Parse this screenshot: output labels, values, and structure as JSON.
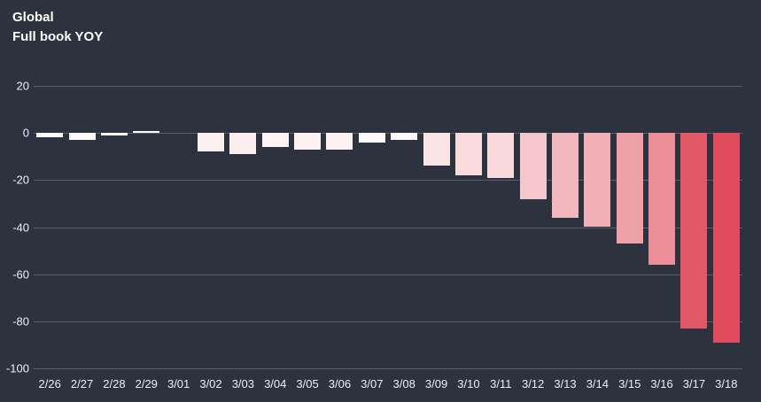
{
  "header": {
    "title": "Global",
    "subtitle": "Full book YOY"
  },
  "colors": {
    "background": "#2d333e",
    "gridline": "#5a606b",
    "axis_label_text": "#edeff2",
    "title_text": "#ffffff"
  },
  "chart_data": {
    "type": "bar",
    "title": "Global",
    "subtitle": "Full book YOY",
    "categories": [
      "2/26",
      "2/27",
      "2/28",
      "2/29",
      "3/01",
      "3/02",
      "3/03",
      "3/04",
      "3/05",
      "3/06",
      "3/07",
      "3/08",
      "3/09",
      "3/10",
      "3/11",
      "3/12",
      "3/13",
      "3/14",
      "3/15",
      "3/16",
      "3/17",
      "3/18"
    ],
    "values": [
      -2,
      -3,
      -1,
      1,
      0,
      -8,
      -9,
      -6,
      -7,
      -7,
      -4,
      -3,
      -14,
      -18,
      -19,
      -28,
      -36,
      -40,
      -47,
      -56,
      -83,
      -89
    ],
    "bar_colors": [
      "#fefbfb",
      "#fef9f9",
      "#fffdfd",
      "#fffdfd",
      "#ffffff",
      "#fceff0",
      "#fcedef",
      "#fdf3f4",
      "#fdf1f2",
      "#fdf1f2",
      "#fef7f8",
      "#fef9f9",
      "#fae3e5",
      "#f9dbde",
      "#f8d9dc",
      "#f5c7cc",
      "#f2b7bd",
      "#f1afb6",
      "#efa1a9",
      "#ec8e98",
      "#e25867",
      "#e04c5c"
    ],
    "ylim": [
      -100,
      20
    ],
    "yticks": [
      20,
      0,
      -20,
      -40,
      -60,
      -80,
      -100
    ],
    "xlabel": "",
    "ylabel": "",
    "grid": "horizontal",
    "legend": "none",
    "color_scale": {
      "at_zero": "#ffffff",
      "at_max_decline": "#e04c5c",
      "max_decline": -89
    }
  }
}
